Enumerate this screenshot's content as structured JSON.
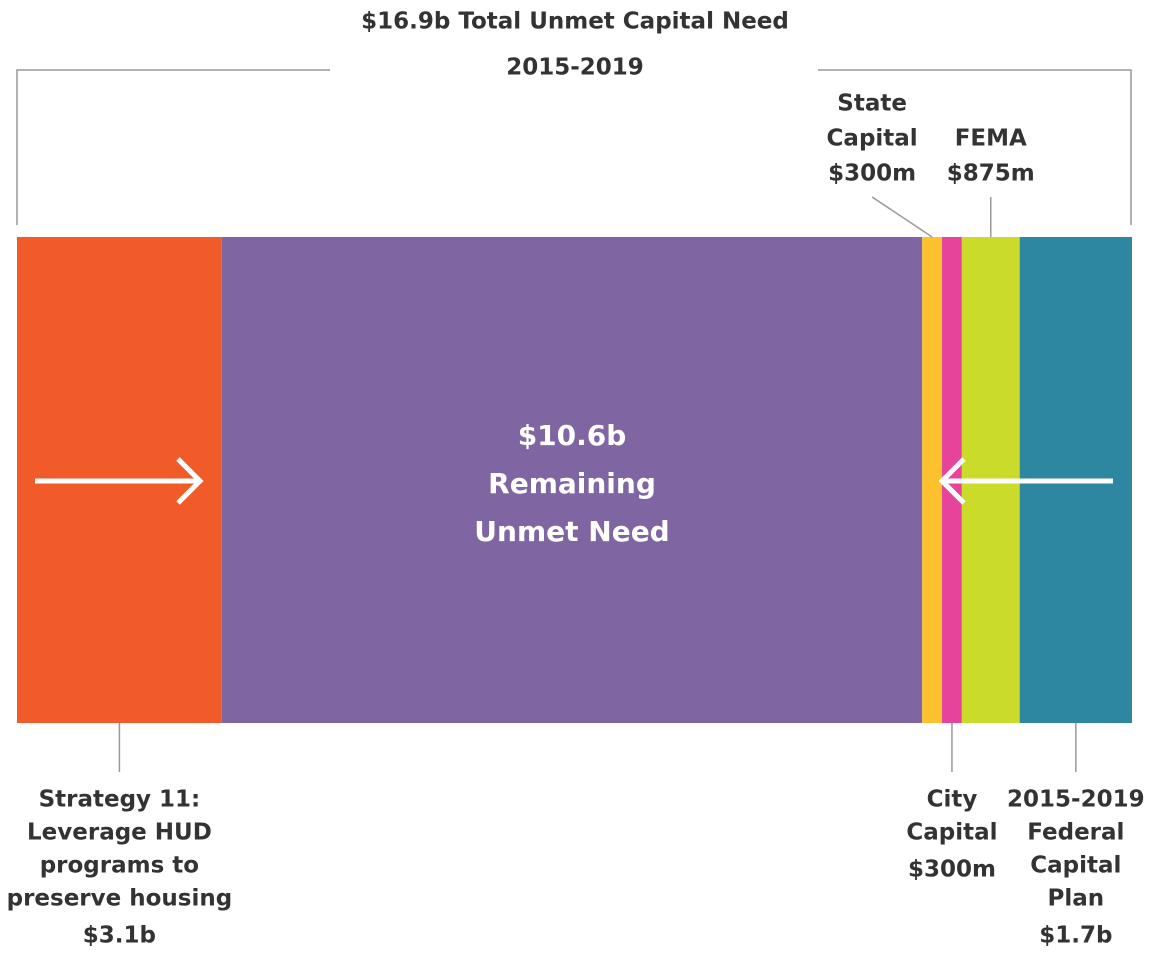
{
  "chart_data": {
    "type": "stacked-bar",
    "title": "$16.9b Total Unmet Capital Need",
    "subtitle": "2015-2019",
    "series": [
      {
        "name_lines": [
          "Strategy 11:",
          "Leverage HUD",
          "programs to",
          "preserve housing"
        ],
        "value": 3.1,
        "value_label": "$3.1b",
        "color": "#f15a29",
        "label_position": "bottom"
      },
      {
        "name_lines": [
          "Remaining",
          "Unmet Need"
        ],
        "value": 10.6,
        "value_label": "$10.6b",
        "color": "#8065a3",
        "label_position": "inside"
      },
      {
        "name_lines": [
          "State",
          "Capital"
        ],
        "value": 0.3,
        "value_label": "$300m",
        "color": "#fcc12d",
        "label_position": "top"
      },
      {
        "name_lines": [
          "City",
          "Capital"
        ],
        "value": 0.3,
        "value_label": "$300m",
        "color": "#e8439a",
        "label_position": "bottom"
      },
      {
        "name_lines": [
          "FEMA"
        ],
        "value": 0.875,
        "value_label": "$875m",
        "color": "#cbdb2a",
        "label_position": "top"
      },
      {
        "name_lines": [
          "2015-2019",
          "Federal",
          "Capital",
          "Plan"
        ],
        "value": 1.7,
        "value_label": "$1.7b",
        "color": "#2e87a0",
        "label_position": "bottom"
      }
    ]
  }
}
